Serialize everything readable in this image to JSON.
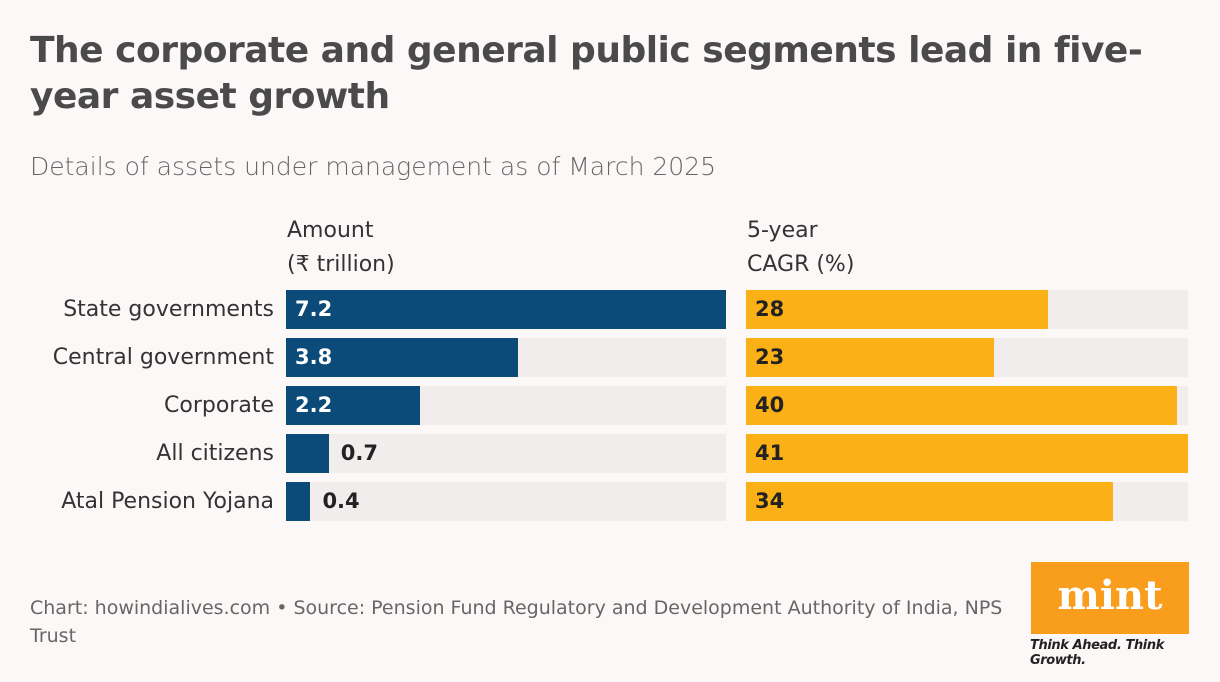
{
  "title": "The corporate and general public segments lead in five-year asset growth",
  "subtitle": "Details of assets under management as of March 2025",
  "footer": "Chart: howindialives.com • Source: Pension Fund Regulatory and Development Authority of India, NPS Trust",
  "logo": {
    "text": "mint",
    "tagline": "Think Ahead. Think Growth."
  },
  "colors": {
    "amount": "#0b4a79",
    "cagr": "#fbb116",
    "track": "#f2eded"
  },
  "chart_data": [
    {
      "type": "bar",
      "orientation": "horizontal",
      "title": "Amount (₹ trillion)",
      "header_line1": "Amount",
      "header_line2": "(₹ trillion)",
      "categories": [
        "State governments",
        "Central government",
        "Corporate",
        "All citizens",
        "Atal Pension Yojana"
      ],
      "values": [
        7.2,
        3.8,
        2.2,
        0.7,
        0.4
      ],
      "xlim": [
        0,
        7.2
      ]
    },
    {
      "type": "bar",
      "orientation": "horizontal",
      "title": "5-year CAGR (%)",
      "header_line1": "5-year",
      "header_line2": "CAGR (%)",
      "categories": [
        "State governments",
        "Central government",
        "Corporate",
        "All citizens",
        "Atal Pension Yojana"
      ],
      "values": [
        28,
        23,
        40,
        41,
        34
      ],
      "xlim": [
        0,
        41
      ]
    }
  ]
}
